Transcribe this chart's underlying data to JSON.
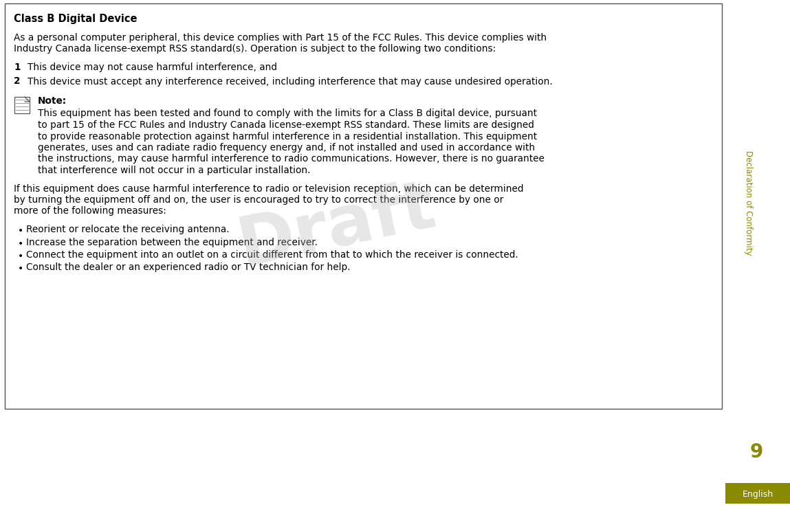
{
  "bg_color": "#ffffff",
  "border_color": "#333333",
  "olive_color": "#8B8B00",
  "sidebar_text": "Declaration of Conformity",
  "page_number": "9",
  "english_label": "English",
  "title": "Class B Digital Device",
  "intro_line1": "As a personal computer peripheral, this device complies with Part 15 of the FCC Rules. This device complies with",
  "intro_line2": "Industry Canada license-exempt RSS standard(s). Operation is subject to the following two conditions:",
  "item1": "This device may not cause harmful interference, and",
  "item2": "This device must accept any interference received, including interference that may cause undesired operation.",
  "note_label": "Note:",
  "note_lines": [
    "This equipment has been tested and found to comply with the limits for a Class B digital device, pursuant",
    "to part 15 of the FCC Rules and Industry Canada license-exempt RSS standard. These limits are designed",
    "to provide reasonable protection against harmful interference in a residential installation. This equipment",
    "generates, uses and can radiate radio frequency energy and, if not installed and used in accordance with",
    "the instructions, may cause harmful interference to radio communications. However, there is no guarantee",
    "that interference will not occur in a particular installation."
  ],
  "para2_lines": [
    "If this equipment does cause harmful interference to radio or television reception, which can be determined",
    "by turning the equipment off and on, the user is encouraged to try to correct the interference by one or",
    "more of the following measures:"
  ],
  "bullets": [
    "Reorient or relocate the receiving antenna.",
    "Increase the separation between the equipment and receiver.",
    "Connect the equipment into an outlet on a circuit different from that to which the receiver is connected.",
    "Consult the dealer or an experienced radio or TV technician for help."
  ],
  "draft_color": "#b0b0b0",
  "draft_alpha": 0.3
}
